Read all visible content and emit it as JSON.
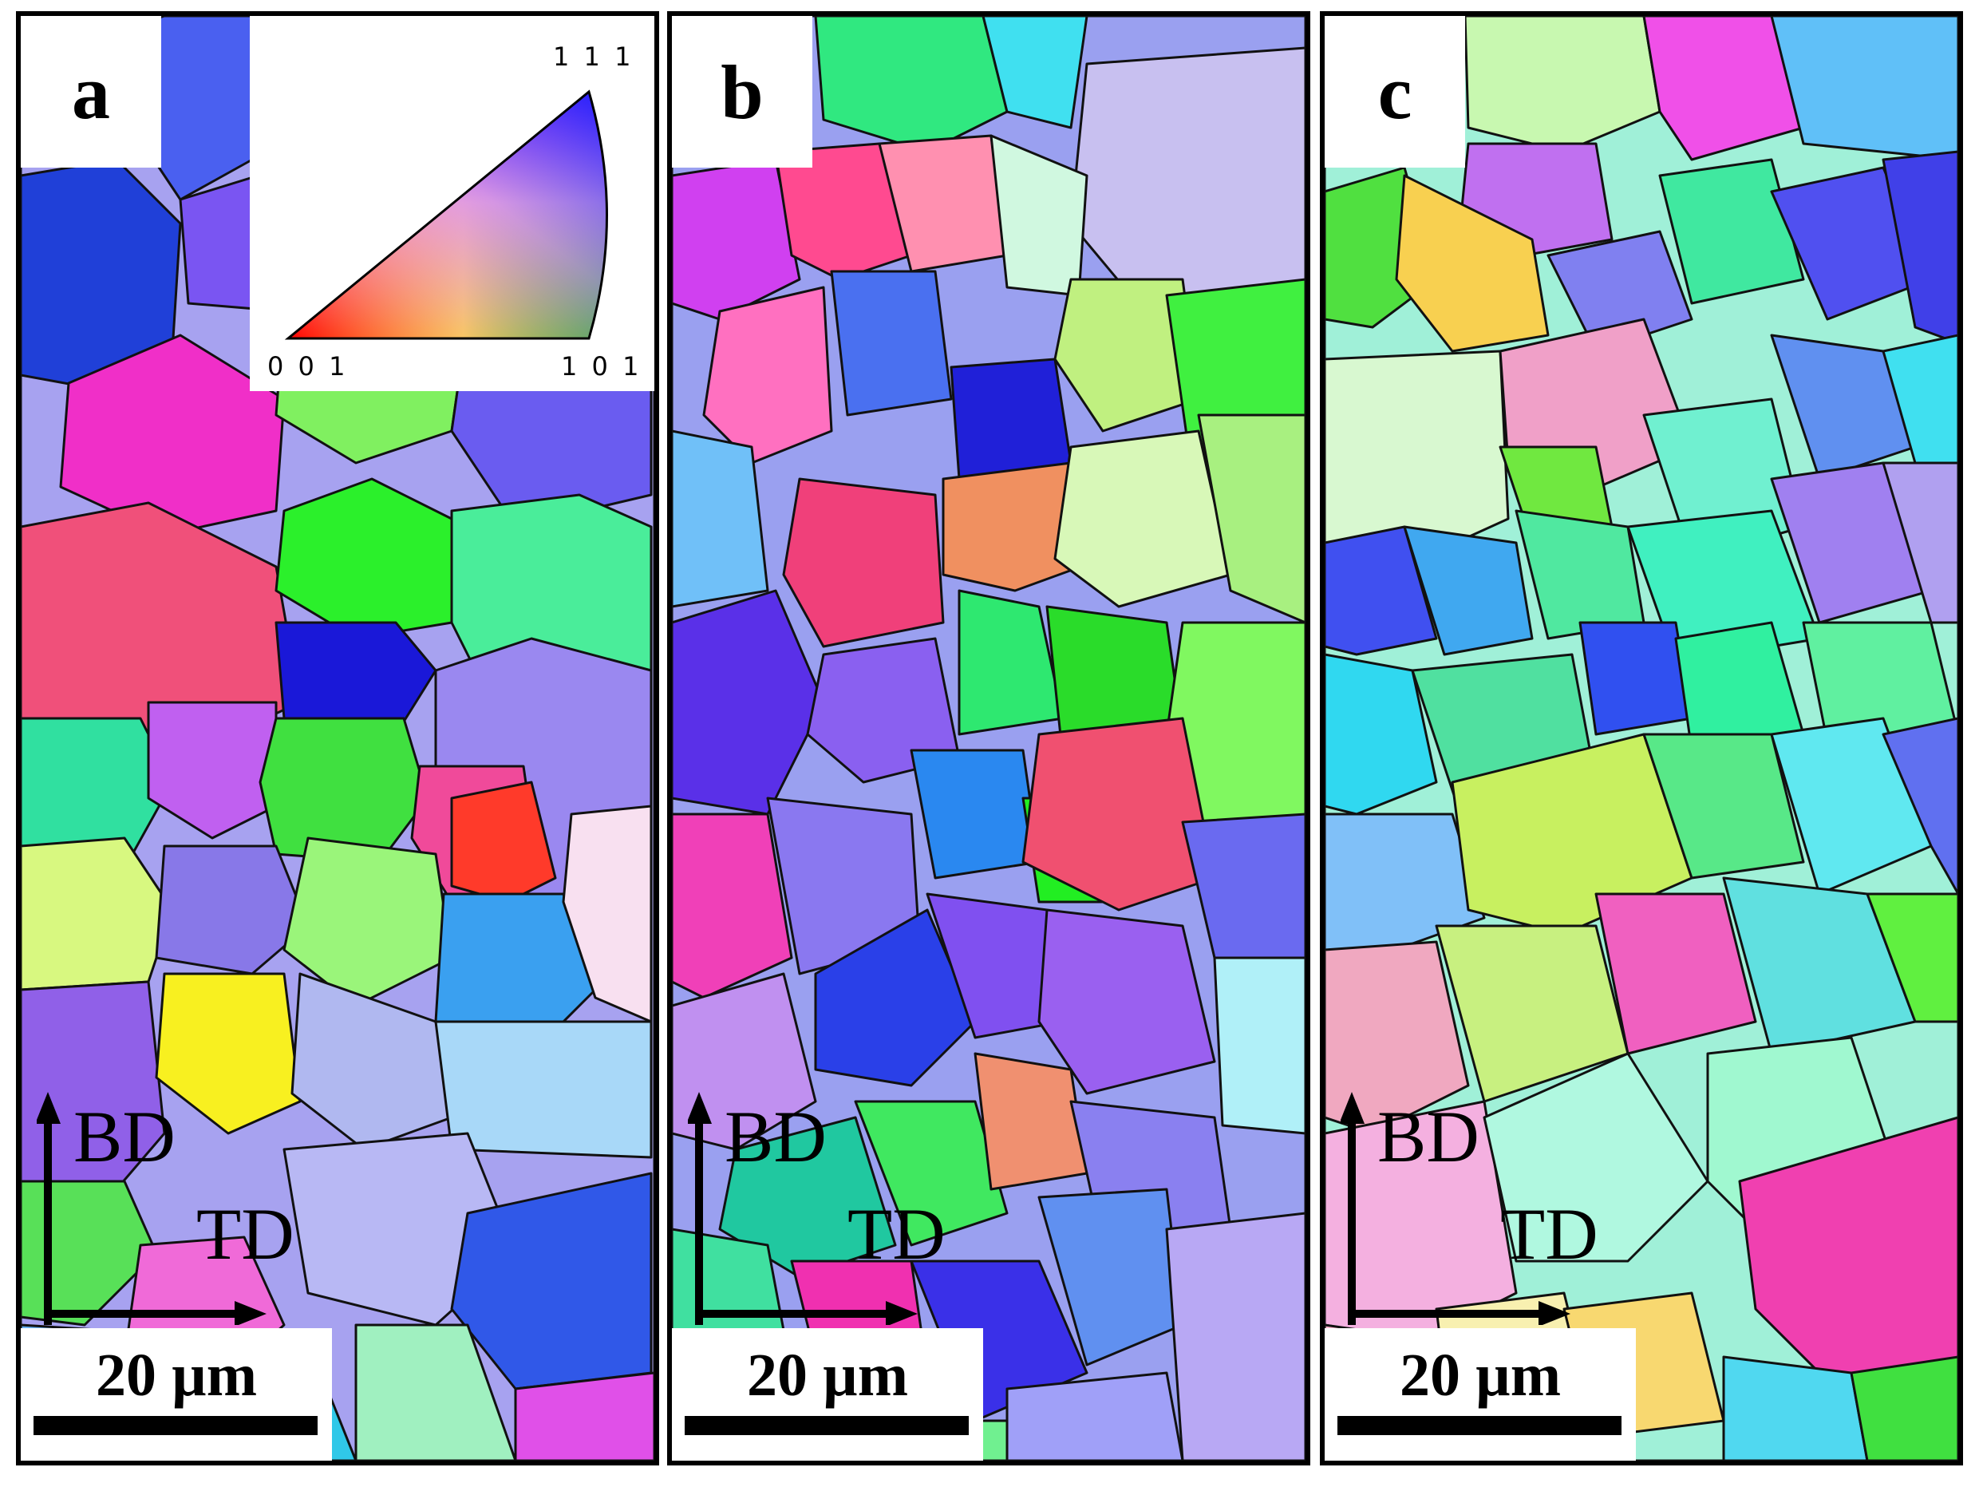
{
  "panels": [
    {
      "letter": "a",
      "scale": "20 µm",
      "bd": "BD",
      "td": "TD"
    },
    {
      "letter": "b",
      "scale": "20 µm",
      "bd": "BD",
      "td": "TD"
    },
    {
      "letter": "c",
      "scale": "20 µm",
      "bd": "BD",
      "td": "TD"
    }
  ],
  "ipf_legend": {
    "corner_111": "1 1 1",
    "corner_001": "0 0 1",
    "corner_101": "1 0 1"
  },
  "colors": {
    "red": "#ff2020",
    "green": "#1ee01e",
    "blue": "#2a22e6",
    "magenta": "#ff2ac8",
    "cyan": "#3fe7e7",
    "lilac": "#b9b4ee",
    "yellow": "#ffff20",
    "mint": "#bff5cf",
    "pink": "#ff6aa0",
    "lime": "#c8f06a"
  }
}
